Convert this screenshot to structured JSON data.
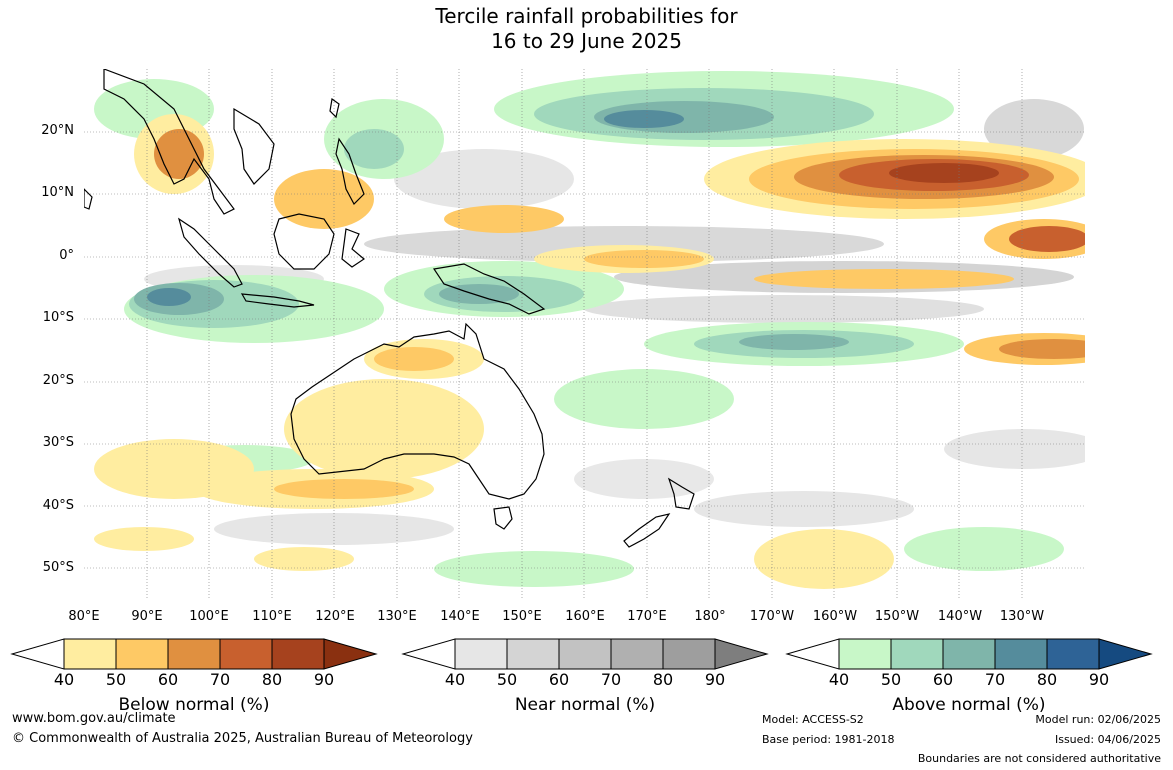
{
  "title": {
    "line1": "Tercile rainfall probabilities for",
    "line2": "16 to 29 June 2025"
  },
  "map": {
    "lat_ticks": [
      "20°N",
      "10°N",
      "0°",
      "10°S",
      "20°S",
      "30°S",
      "40°S",
      "50°S"
    ],
    "lon_ticks": [
      "80°E",
      "90°E",
      "100°E",
      "110°E",
      "120°E",
      "130°E",
      "140°E",
      "150°E",
      "160°E",
      "170°E",
      "180°",
      "170°W",
      "160°W",
      "150°W",
      "140°W",
      "130°W"
    ]
  },
  "colorbars": [
    {
      "label": "Below normal (%)",
      "ticks": [
        "40",
        "50",
        "60",
        "70",
        "80",
        "90"
      ],
      "colors": [
        "#ffffff",
        "#ffeda0",
        "#fec965",
        "#e09040",
        "#c8602e",
        "#a6421e",
        "#8a3010"
      ]
    },
    {
      "label": "Near normal (%)",
      "ticks": [
        "40",
        "50",
        "60",
        "70",
        "80",
        "90"
      ],
      "colors": [
        "#ffffff",
        "#e6e6e6",
        "#d4d4d4",
        "#c2c2c2",
        "#b0b0b0",
        "#9e9e9e",
        "#7e7e7e"
      ]
    },
    {
      "label": "Above normal (%)",
      "ticks": [
        "40",
        "50",
        "60",
        "70",
        "80",
        "90"
      ],
      "colors": [
        "#ffffff",
        "#c8f7c8",
        "#a0d8bc",
        "#7fb5aa",
        "#558c9c",
        "#2e6396",
        "#154a80"
      ]
    }
  ],
  "footer": {
    "website": "www.bom.gov.au/climate",
    "copyright": "© Commonwealth of Australia 2025, Australian Bureau of Meteorology",
    "model": "Model: ACCESS-S2",
    "base_period": "Base period: 1981-2018",
    "model_run": "Model run: 02/06/2025",
    "issued": "Issued: 04/06/2025",
    "disclaimer": "Boundaries are not considered authoritative"
  }
}
